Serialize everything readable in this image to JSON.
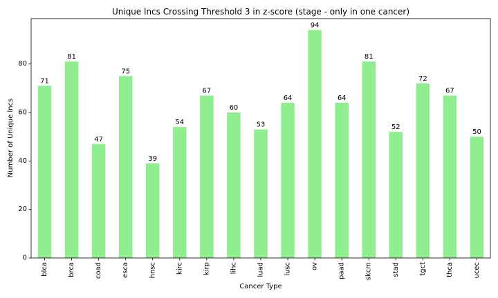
{
  "chart_data": {
    "type": "bar",
    "title": "Unique lncs Crossing Threshold 3 in z-score (stage - only in one cancer)",
    "xlabel": "Cancer Type",
    "ylabel": "Number of Unique lncs",
    "categories": [
      "blca",
      "brca",
      "coad",
      "esca",
      "hnsc",
      "kirc",
      "kirp",
      "lihc",
      "luad",
      "lusc",
      "ov",
      "paad",
      "skcm",
      "stad",
      "tgct",
      "thca",
      "ucec"
    ],
    "values": [
      71,
      81,
      47,
      75,
      39,
      54,
      67,
      60,
      53,
      64,
      94,
      64,
      81,
      52,
      72,
      67,
      50
    ],
    "ylim": [
      0,
      98.7
    ],
    "yticks": [
      0,
      20,
      40,
      60,
      80
    ],
    "bar_color": "#90ee90",
    "grid": false,
    "legend": "none"
  }
}
